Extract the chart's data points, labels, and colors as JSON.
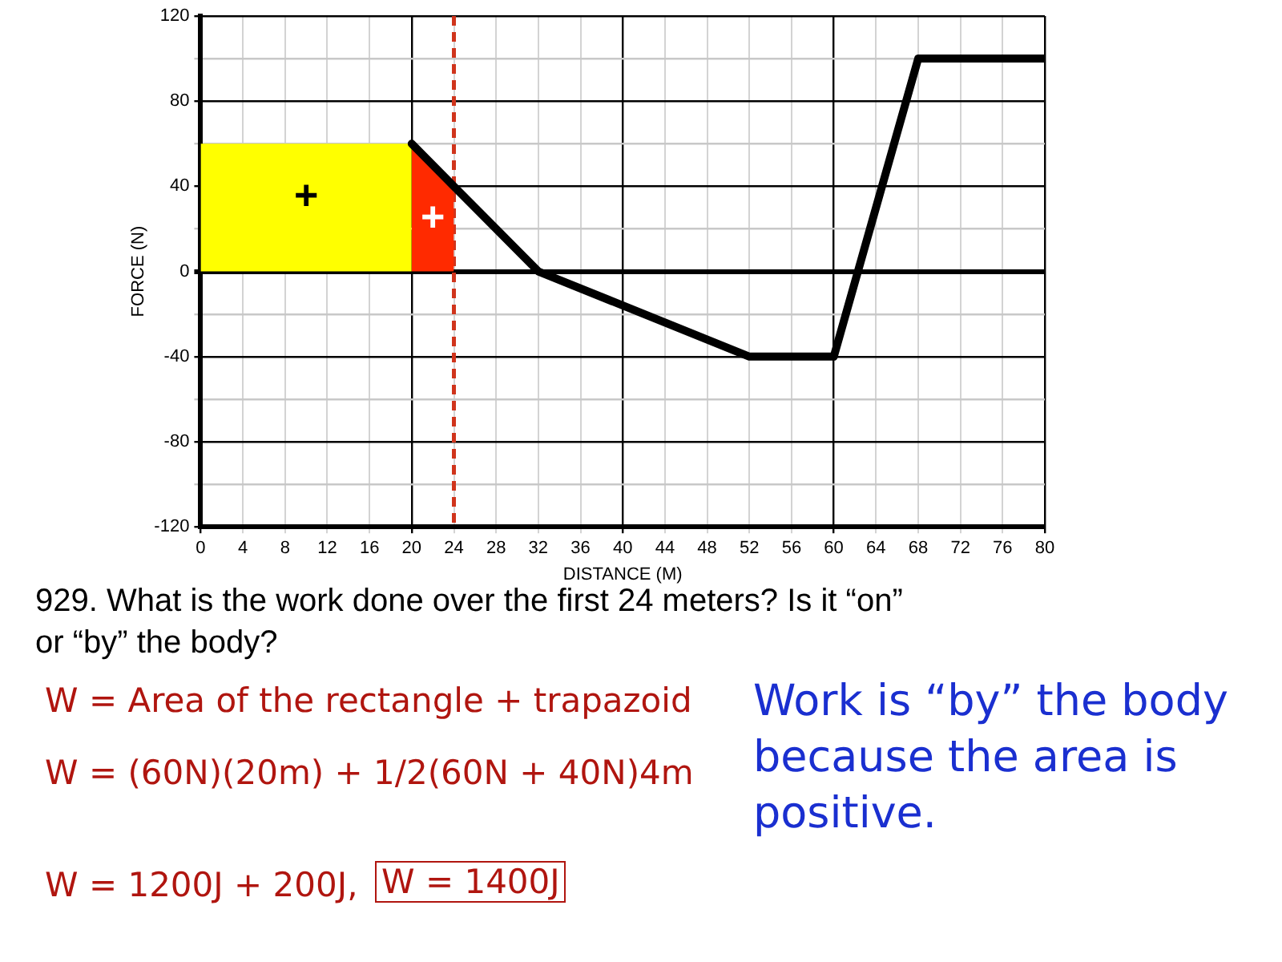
{
  "chart_data": {
    "type": "line",
    "xlabel": "DISTANCE (M)",
    "ylabel": "FORCE (N)",
    "series": [
      {
        "type": "area",
        "color": "#ffff00",
        "x": [
          0,
          20
        ],
        "values": [
          60,
          60
        ]
      },
      {
        "type": "area",
        "color": "#ff2a00",
        "x": [
          20,
          24
        ],
        "values": [
          60,
          40
        ]
      },
      {
        "type": "line",
        "color": "#000000",
        "x": [
          20,
          24,
          32,
          52,
          60,
          68,
          80
        ],
        "values": [
          60,
          40,
          0,
          -40,
          -40,
          100,
          100
        ]
      }
    ],
    "xlim": [
      0,
      80
    ],
    "xticks": [
      0,
      4,
      8,
      12,
      16,
      20,
      24,
      28,
      32,
      36,
      40,
      44,
      48,
      52,
      56,
      60,
      64,
      68,
      72,
      76,
      80
    ],
    "ylim": [
      -120,
      120
    ],
    "yticks": [
      -120,
      {
        "value": -100,
        "label": null
      },
      -80,
      {
        "value": -60,
        "label": null
      },
      -40,
      {
        "value": -20,
        "label": null
      },
      0,
      {
        "value": 20,
        "label": null
      },
      40,
      {
        "value": 60,
        "label": null
      },
      80,
      {
        "value": 100,
        "label": null
      },
      120
    ],
    "grid": true,
    "legend": false,
    "marker": "none",
    "ref_lines": [
      {
        "axis": "x",
        "value": 24,
        "color": "#d0341c",
        "line_style": "dashed"
      }
    ],
    "annotations": [
      "+",
      "+",
      "929. What is the work done over the first 24 meters? Is it “on” or “by” the body?",
      "W = Area of the rectangle + trapazoid",
      "W = (60N)(20m) + 1/2(60N + 40N)4m",
      "W = 1200J + 200J,",
      "W = 1400J",
      "Work is “by” the body because the area is positive."
    ]
  }
}
